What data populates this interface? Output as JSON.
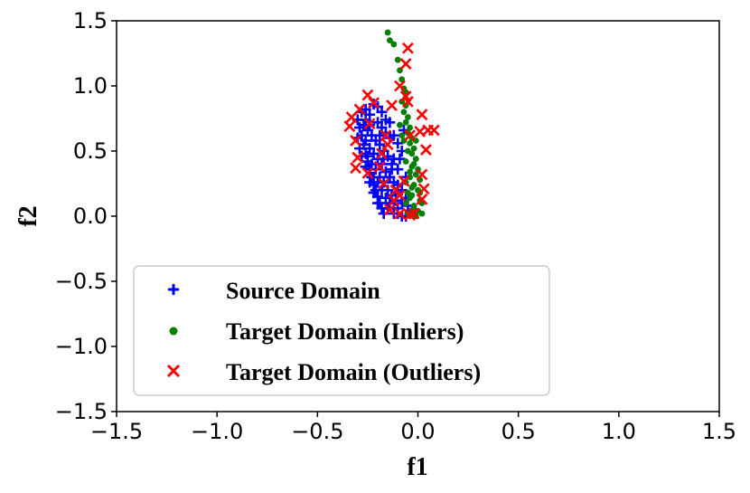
{
  "chart_data": {
    "type": "scatter",
    "title": "",
    "xlabel": "f1",
    "ylabel": "f2",
    "xlim": [
      -1.5,
      1.5
    ],
    "ylim": [
      -1.5,
      1.5
    ],
    "xticks": [
      -1.5,
      -1.0,
      -0.5,
      0.0,
      0.5,
      1.0,
      1.5
    ],
    "yticks": [
      -1.5,
      -1.0,
      -0.5,
      0.0,
      0.5,
      1.0,
      1.5
    ],
    "xtick_labels": [
      "−1.5",
      "−1.0",
      "−0.5",
      "0.0",
      "0.5",
      "1.0",
      "1.5"
    ],
    "ytick_labels": [
      "−1.5",
      "−1.0",
      "−0.5",
      "0.0",
      "0.5",
      "1.0",
      "1.5"
    ],
    "grid": false,
    "legend_position": "lower-left",
    "series": [
      {
        "name": "Source Domain",
        "marker": "plus",
        "color": "#0000ff",
        "points": [
          [
            -0.3,
            0.74
          ],
          [
            -0.29,
            0.68
          ],
          [
            -0.28,
            0.62
          ],
          [
            -0.27,
            0.55
          ],
          [
            -0.26,
            0.48
          ],
          [
            -0.25,
            0.42
          ],
          [
            -0.24,
            0.36
          ],
          [
            -0.23,
            0.3
          ],
          [
            -0.22,
            0.24
          ],
          [
            -0.21,
            0.2
          ],
          [
            -0.2,
            0.15
          ],
          [
            -0.19,
            0.1
          ],
          [
            -0.18,
            0.06
          ],
          [
            -0.17,
            0.02
          ],
          [
            -0.28,
            0.8
          ],
          [
            -0.26,
            0.82
          ],
          [
            -0.24,
            0.78
          ],
          [
            -0.22,
            0.86
          ],
          [
            -0.2,
            0.84
          ],
          [
            -0.18,
            0.8
          ],
          [
            -0.16,
            0.74
          ],
          [
            -0.14,
            0.72
          ],
          [
            -0.27,
            0.7
          ],
          [
            -0.25,
            0.66
          ],
          [
            -0.23,
            0.62
          ],
          [
            -0.21,
            0.58
          ],
          [
            -0.19,
            0.55
          ],
          [
            -0.17,
            0.5
          ],
          [
            -0.15,
            0.46
          ],
          [
            -0.13,
            0.4
          ],
          [
            -0.26,
            0.58
          ],
          [
            -0.24,
            0.52
          ],
          [
            -0.22,
            0.48
          ],
          [
            -0.2,
            0.44
          ],
          [
            -0.18,
            0.4
          ],
          [
            -0.16,
            0.34
          ],
          [
            -0.14,
            0.3
          ],
          [
            -0.12,
            0.26
          ],
          [
            -0.25,
            0.46
          ],
          [
            -0.23,
            0.4
          ],
          [
            -0.21,
            0.36
          ],
          [
            -0.19,
            0.3
          ],
          [
            -0.17,
            0.26
          ],
          [
            -0.15,
            0.2
          ],
          [
            -0.13,
            0.16
          ],
          [
            -0.11,
            0.12
          ],
          [
            -0.22,
            0.3
          ],
          [
            -0.2,
            0.26
          ],
          [
            -0.18,
            0.2
          ],
          [
            -0.16,
            0.14
          ],
          [
            -0.14,
            0.1
          ],
          [
            -0.12,
            0.06
          ],
          [
            -0.1,
            0.02
          ],
          [
            -0.08,
            0.0
          ],
          [
            -0.06,
            0.0
          ],
          [
            -0.04,
            0.02
          ],
          [
            -0.12,
            0.02
          ],
          [
            -0.1,
            0.06
          ],
          [
            -0.08,
            0.1
          ],
          [
            -0.06,
            0.14
          ],
          [
            -0.08,
            0.2
          ],
          [
            -0.1,
            0.24
          ],
          [
            -0.06,
            0.3
          ],
          [
            -0.1,
            0.36
          ],
          [
            -0.12,
            0.44
          ],
          [
            -0.08,
            0.5
          ],
          [
            -0.1,
            0.56
          ],
          [
            -0.12,
            0.62
          ],
          [
            -0.14,
            0.6
          ],
          [
            -0.16,
            0.64
          ],
          [
            -0.18,
            0.68
          ],
          [
            -0.2,
            0.72
          ],
          [
            -0.24,
            0.7
          ],
          [
            -0.26,
            0.74
          ],
          [
            -0.3,
            0.6
          ],
          [
            -0.29,
            0.52
          ],
          [
            -0.28,
            0.46
          ],
          [
            -0.26,
            0.38
          ],
          [
            -0.24,
            0.26
          ],
          [
            -0.22,
            0.18
          ],
          [
            -0.2,
            0.1
          ],
          [
            -0.07,
            0.66
          ],
          [
            -0.09,
            0.44
          ],
          [
            -0.05,
            0.08
          ],
          [
            -0.03,
            0.04
          ],
          [
            -0.15,
            0.06
          ],
          [
            -0.13,
            0.36
          ],
          [
            -0.11,
            0.18
          ],
          [
            -0.17,
            0.44
          ],
          [
            -0.19,
            0.62
          ]
        ]
      },
      {
        "name": "Target Domain (Inliers)",
        "marker": "dot",
        "color": "#008000",
        "points": [
          [
            -0.15,
            1.41
          ],
          [
            -0.14,
            1.35
          ],
          [
            -0.12,
            1.32
          ],
          [
            -0.1,
            1.2
          ],
          [
            -0.09,
            1.12
          ],
          [
            -0.08,
            1.05
          ],
          [
            -0.07,
            0.98
          ],
          [
            -0.06,
            0.95
          ],
          [
            -0.08,
            0.88
          ],
          [
            -0.06,
            0.85
          ],
          [
            -0.07,
            0.8
          ],
          [
            -0.05,
            0.76
          ],
          [
            -0.06,
            0.72
          ],
          [
            -0.04,
            0.68
          ],
          [
            -0.05,
            0.64
          ],
          [
            -0.03,
            0.6
          ],
          [
            -0.04,
            0.56
          ],
          [
            -0.02,
            0.52
          ],
          [
            -0.03,
            0.48
          ],
          [
            -0.01,
            0.44
          ],
          [
            -0.02,
            0.4
          ],
          [
            0.0,
            0.36
          ],
          [
            -0.01,
            0.32
          ],
          [
            0.01,
            0.28
          ],
          [
            -0.02,
            0.24
          ],
          [
            0.0,
            0.2
          ],
          [
            -0.03,
            0.16
          ],
          [
            0.01,
            0.12
          ],
          [
            -0.02,
            0.08
          ],
          [
            0.0,
            0.04
          ],
          [
            0.02,
            0.02
          ],
          [
            -0.01,
            0.0
          ],
          [
            -0.05,
            0.02
          ],
          [
            -0.06,
            0.1
          ],
          [
            -0.05,
            0.18
          ],
          [
            -0.06,
            0.26
          ],
          [
            -0.04,
            0.34
          ],
          [
            -0.06,
            0.42
          ],
          [
            -0.05,
            0.5
          ],
          [
            -0.04,
            0.3
          ],
          [
            -0.03,
            0.22
          ],
          [
            -0.04,
            0.14
          ],
          [
            -0.02,
            0.06
          ],
          [
            0.01,
            0.18
          ],
          [
            0.02,
            0.1
          ],
          [
            -0.08,
            0.62
          ],
          [
            -0.09,
            0.7
          ],
          [
            -0.03,
            0.38
          ],
          [
            -0.01,
            0.58
          ],
          [
            -0.07,
            0.58
          ]
        ]
      },
      {
        "name": "Target Domain (Outliers)",
        "marker": "x",
        "color": "#ff0000",
        "points": [
          [
            -0.05,
            1.29
          ],
          [
            -0.06,
            1.17
          ],
          [
            -0.09,
            1.0
          ],
          [
            -0.06,
            0.92
          ],
          [
            -0.05,
            0.88
          ],
          [
            0.02,
            0.78
          ],
          [
            0.05,
            0.66
          ],
          [
            0.08,
            0.66
          ],
          [
            -0.04,
            0.62
          ],
          [
            0.01,
            0.65
          ],
          [
            0.04,
            0.51
          ],
          [
            -0.22,
            0.87
          ],
          [
            -0.25,
            0.93
          ],
          [
            -0.29,
            0.82
          ],
          [
            -0.33,
            0.76
          ],
          [
            -0.34,
            0.69
          ],
          [
            -0.31,
            0.58
          ],
          [
            -0.24,
            0.71
          ],
          [
            -0.16,
            0.62
          ],
          [
            -0.18,
            0.48
          ],
          [
            -0.19,
            0.38
          ],
          [
            -0.3,
            0.45
          ],
          [
            -0.31,
            0.37
          ],
          [
            -0.25,
            0.33
          ],
          [
            -0.17,
            0.25
          ],
          [
            -0.11,
            0.2
          ],
          [
            -0.12,
            0.12
          ],
          [
            -0.14,
            0.05
          ],
          [
            -0.09,
            0.02
          ],
          [
            -0.04,
            0.01
          ],
          [
            0.02,
            0.32
          ],
          [
            0.03,
            0.21
          ],
          [
            0.02,
            0.13
          ],
          [
            -0.09,
            0.16
          ],
          [
            -0.07,
            0.27
          ],
          [
            -0.13,
            0.85
          ],
          [
            -0.15,
            0.55
          ],
          [
            -0.02,
            0.02
          ]
        ]
      }
    ]
  },
  "legend": {
    "items": [
      {
        "label": "Source Domain"
      },
      {
        "label": "Target Domain (Inliers)"
      },
      {
        "label": "Target Domain (Outliers)"
      }
    ]
  }
}
